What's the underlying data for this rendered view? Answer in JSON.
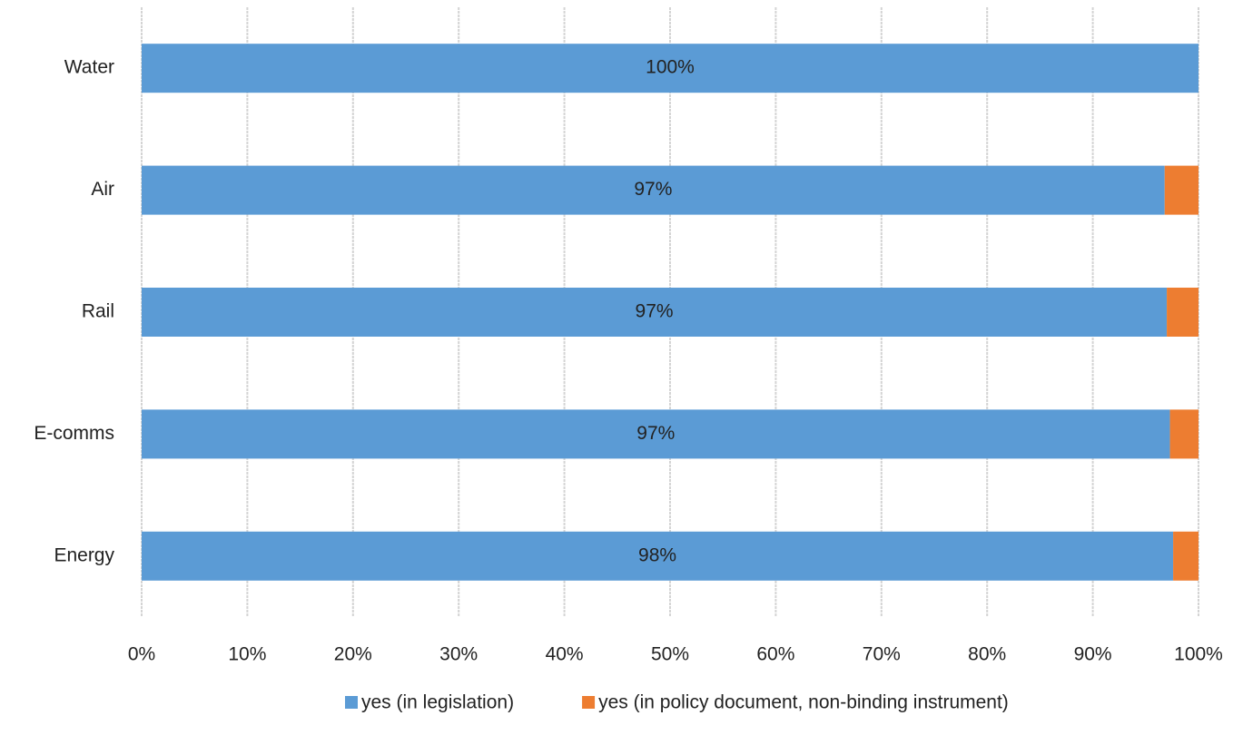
{
  "chart_data": {
    "type": "stacked_barh",
    "categories": [
      "Water",
      "Air",
      "Rail",
      "E-comms",
      "Energy"
    ],
    "series": [
      {
        "name": "yes (in legislation)",
        "color": "#5b9bd5",
        "values": [
          100,
          96.8,
          97.0,
          97.3,
          97.6
        ],
        "value_labels": [
          "100%",
          "97%",
          "97%",
          "97%",
          "98%"
        ]
      },
      {
        "name": "yes (in policy document, non-binding instrument)",
        "color": "#ed7d31",
        "values": [
          0,
          3.2,
          3.0,
          2.7,
          2.4
        ]
      }
    ],
    "xlim": [
      0,
      100
    ],
    "xticks": [
      {
        "value": 0,
        "label": "0%"
      },
      {
        "value": 10,
        "label": "10%"
      },
      {
        "value": 20,
        "label": "20%"
      },
      {
        "value": 30,
        "label": "30%"
      },
      {
        "value": 40,
        "label": "40%"
      },
      {
        "value": 50,
        "label": "50%"
      },
      {
        "value": 60,
        "label": "60%"
      },
      {
        "value": 70,
        "label": "70%"
      },
      {
        "value": 80,
        "label": "80%"
      },
      {
        "value": 90,
        "label": "90%"
      },
      {
        "value": 100,
        "label": "100%"
      }
    ],
    "grid": true,
    "legend": "bottom"
  }
}
